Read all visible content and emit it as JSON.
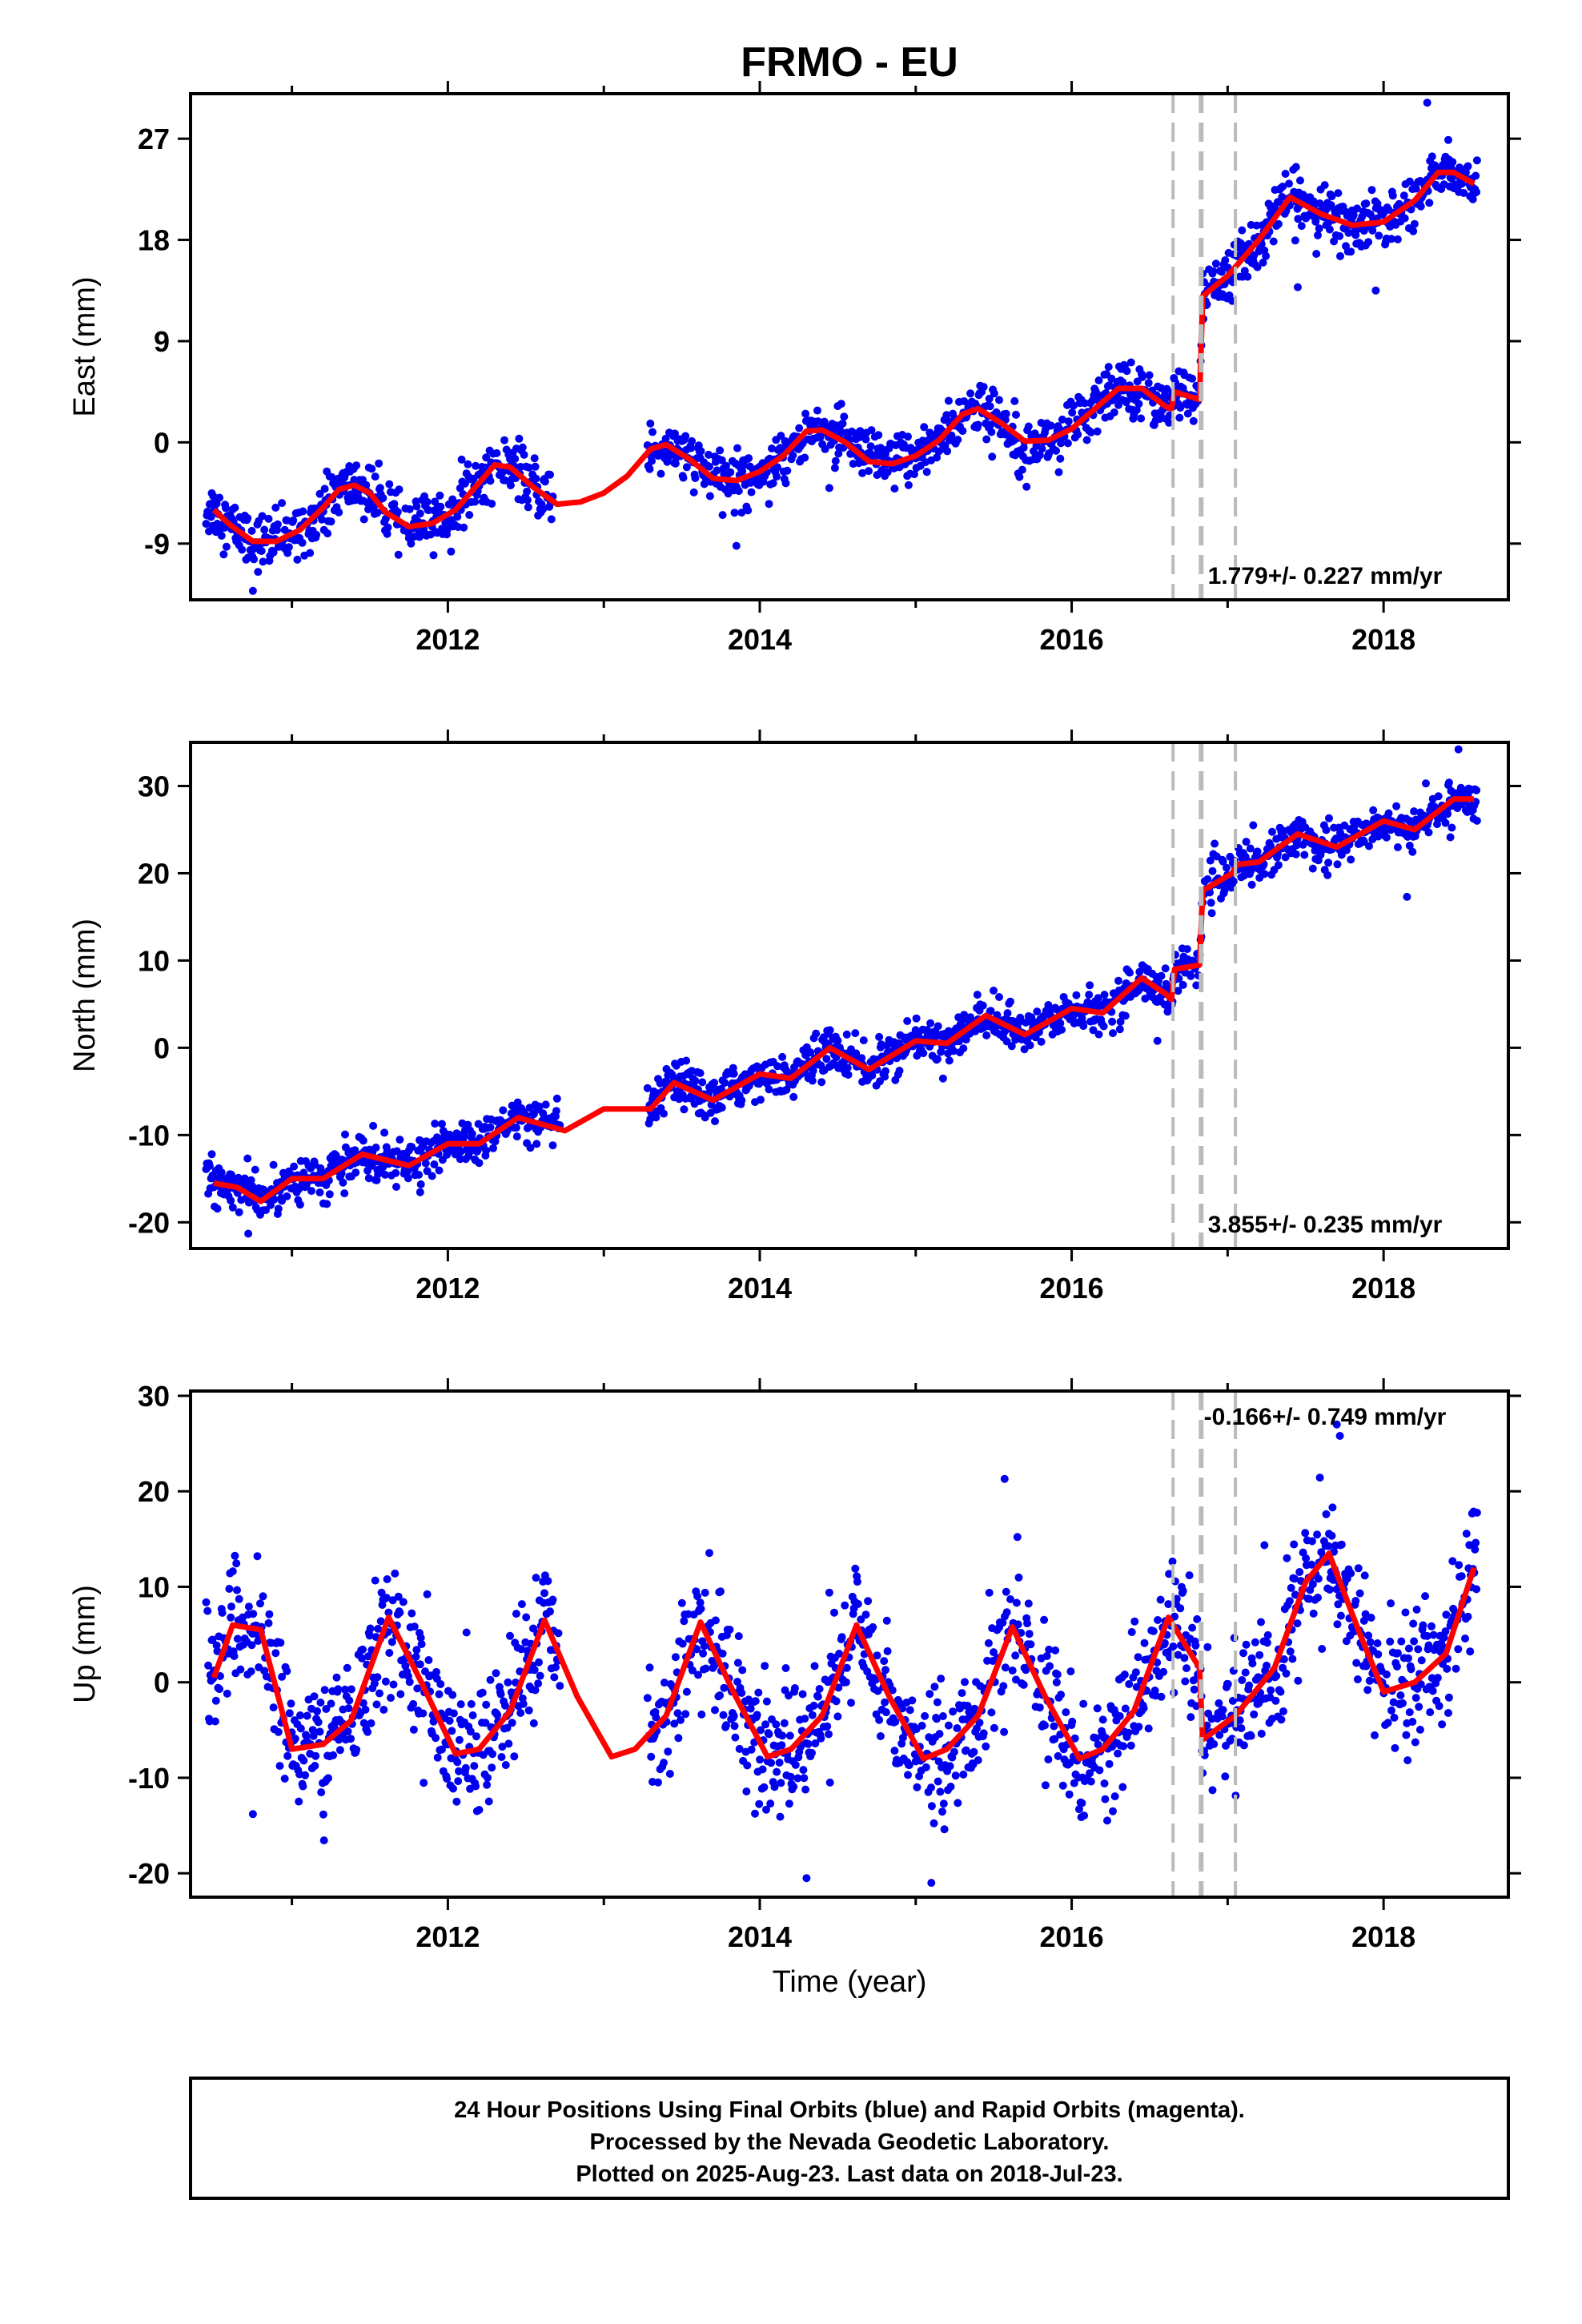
{
  "title": "FRMO - EU",
  "xlabel": "Time (year)",
  "footer": {
    "line1": "24 Hour Positions Using Final Orbits (blue) and Rapid Orbits (magenta).",
    "line2": "Processed by the Nevada Geodetic Laboratory.",
    "line3": "Plotted on 2025-Aug-23. Last data on 2018-Jul-23."
  },
  "colors": {
    "points": "#0000ee",
    "model": "#ff0000",
    "steps": "#bbbbbb",
    "frame": "#000000"
  },
  "chart_data": [
    {
      "type": "scatter",
      "panel": "east",
      "ylabel": "East (mm)",
      "rate_label": "1.779+/- 0.227 mm/yr",
      "xlim": [
        2010.35,
        2018.8
      ],
      "ylim": [
        -14,
        31
      ],
      "xticks": [
        2012,
        2014,
        2016,
        2018
      ],
      "yticks": [
        -9,
        0,
        9,
        18,
        27
      ],
      "grid": false,
      "step_lines": [
        2016.65,
        2016.83,
        2017.05
      ],
      "model": {
        "x": [
          2010.5,
          2010.6,
          2010.75,
          2010.9,
          2011.05,
          2011.2,
          2011.3,
          2011.4,
          2011.5,
          2011.6,
          2011.75,
          2011.9,
          2012.05,
          2012.15,
          2012.3,
          2012.4,
          2012.55,
          2012.7,
          2012.85,
          2013.0,
          2013.15,
          2013.3,
          2013.4,
          2013.55,
          2013.7,
          2013.85,
          2014.0,
          2014.15,
          2014.3,
          2014.4,
          2014.55,
          2014.7,
          2014.85,
          2015.0,
          2015.15,
          2015.3,
          2015.4,
          2015.55,
          2015.7,
          2015.85,
          2016.0,
          2016.15,
          2016.3,
          2016.45,
          2016.6,
          2016.64,
          2016.66,
          2016.82,
          2016.84,
          2017.0,
          2017.2,
          2017.4,
          2017.6,
          2017.8,
          2018.0,
          2018.2,
          2018.35,
          2018.45,
          2018.58
        ],
        "y": [
          -6,
          -7.3,
          -8.8,
          -8.8,
          -7.8,
          -5.8,
          -4.2,
          -3.8,
          -4.5,
          -6.2,
          -7.5,
          -7.2,
          -6.0,
          -4.4,
          -2.0,
          -2.2,
          -4.0,
          -5.5,
          -5.3,
          -4.5,
          -3.0,
          -0.6,
          -0.2,
          -1.5,
          -3.2,
          -3.4,
          -2.6,
          -1.2,
          1.0,
          1.1,
          0.0,
          -1.7,
          -1.9,
          -1.2,
          0.2,
          2.5,
          3.0,
          1.7,
          0.1,
          0.2,
          1.2,
          3.0,
          4.8,
          4.8,
          3.2,
          3.0,
          4.5,
          3.8,
          13.0,
          14.8,
          18.0,
          21.8,
          20.3,
          19.3,
          19.6,
          21.5,
          24.0,
          24.0,
          23.0
        ]
      },
      "scatter_sd": 1.2,
      "gaps": [
        [
          2012.68,
          2013.28
        ]
      ],
      "outliers": [
        [
          2010.75,
          -13.2
        ],
        [
          2013.85,
          -9.2
        ],
        [
          2018.28,
          30.2
        ],
        [
          2017.95,
          13.5
        ],
        [
          2017.45,
          13.8
        ]
      ]
    },
    {
      "type": "scatter",
      "panel": "north",
      "ylabel": "North (mm)",
      "rate_label": "3.855+/- 0.235 mm/yr",
      "xlim": [
        2010.35,
        2018.8
      ],
      "ylim": [
        -23,
        35
      ],
      "xticks": [
        2012,
        2014,
        2016,
        2018
      ],
      "yticks": [
        -20,
        -10,
        0,
        10,
        20,
        30
      ],
      "grid": false,
      "step_lines": [
        2016.65,
        2016.83,
        2017.05
      ],
      "model": {
        "x": [
          2010.5,
          2010.65,
          2010.8,
          2011.0,
          2011.2,
          2011.45,
          2011.75,
          2012.0,
          2012.2,
          2012.45,
          2012.75,
          2013.0,
          2013.3,
          2013.45,
          2013.7,
          2014.0,
          2014.2,
          2014.45,
          2014.7,
          2015.0,
          2015.2,
          2015.45,
          2015.7,
          2016.0,
          2016.2,
          2016.45,
          2016.6,
          2016.64,
          2016.66,
          2016.82,
          2016.84,
          2017.03,
          2017.06,
          2017.2,
          2017.45,
          2017.7,
          2018.0,
          2018.2,
          2018.45,
          2018.58
        ],
        "y": [
          -15.5,
          -16.0,
          -17.6,
          -15.0,
          -15.0,
          -12.2,
          -13.5,
          -11.0,
          -11.0,
          -8.0,
          -9.5,
          -7.0,
          -7.0,
          -4.0,
          -6.0,
          -3.0,
          -3.5,
          0.0,
          -2.5,
          0.8,
          0.5,
          3.7,
          1.5,
          4.5,
          4.0,
          8.0,
          6.2,
          5.5,
          9.0,
          9.5,
          18.0,
          20.0,
          21.0,
          21.3,
          24.5,
          23.0,
          26.0,
          25.0,
          28.5,
          28.5
        ]
      },
      "scatter_sd": 1.2,
      "gaps": [
        [
          2012.72,
          2013.28
        ]
      ],
      "outliers": [
        [
          2010.72,
          -21.3
        ],
        [
          2016.55,
          0.8
        ],
        [
          2018.15,
          17.3
        ],
        [
          2018.48,
          34.2
        ]
      ]
    },
    {
      "type": "scatter",
      "panel": "up",
      "ylabel": "Up (mm)",
      "rate_label": "-0.166+/- 0.749 mm/yr",
      "xlim": [
        2010.35,
        2018.8
      ],
      "ylim": [
        -22.5,
        30.5
      ],
      "xticks": [
        2012,
        2014,
        2016,
        2018
      ],
      "yticks": [
        -20,
        -10,
        0,
        10,
        20,
        30
      ],
      "grid": false,
      "step_lines": [
        2016.65,
        2016.83,
        2017.05
      ],
      "model": {
        "x": [
          2010.5,
          2010.62,
          2010.8,
          2011.0,
          2011.2,
          2011.38,
          2011.62,
          2011.83,
          2012.05,
          2012.2,
          2012.4,
          2012.62,
          2012.83,
          2013.05,
          2013.2,
          2013.4,
          2013.62,
          2013.83,
          2014.05,
          2014.2,
          2014.4,
          2014.62,
          2014.83,
          2015.05,
          2015.2,
          2015.4,
          2015.62,
          2015.83,
          2016.05,
          2016.2,
          2016.4,
          2016.62,
          2016.82,
          2016.84,
          2017.05,
          2017.3,
          2017.5,
          2017.65,
          2017.85,
          2018.0,
          2018.2,
          2018.4,
          2018.58
        ],
        "y": [
          0.5,
          6.0,
          5.5,
          -7.0,
          -6.5,
          -4.0,
          6.8,
          0.0,
          -7.5,
          -7.0,
          -3.0,
          6.5,
          -1.5,
          -7.8,
          -7.0,
          -3.5,
          6.3,
          -1.0,
          -7.8,
          -7.0,
          -3.5,
          6.0,
          -1.5,
          -8.0,
          -7.0,
          -3.5,
          5.8,
          -1.5,
          -8.0,
          -7.0,
          -3.0,
          6.8,
          1.5,
          -6.0,
          -3.5,
          1.5,
          10.5,
          13.5,
          5.0,
          -1.0,
          0.0,
          3.0,
          12.0
        ]
      },
      "scatter_sd": 3.3,
      "gaps": [
        [
          2012.72,
          2013.28
        ]
      ],
      "outliers": [
        [
          2015.57,
          21.3
        ],
        [
          2017.7,
          27.0
        ],
        [
          2017.72,
          25.8
        ],
        [
          2014.3,
          -20.5
        ],
        [
          2015.1,
          -21.0
        ],
        [
          2010.75,
          -13.8
        ]
      ]
    }
  ]
}
